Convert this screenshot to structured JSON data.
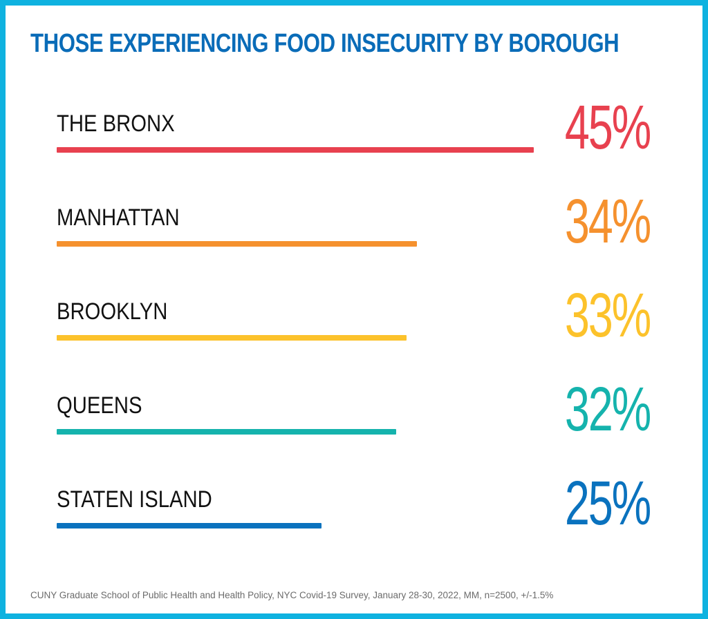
{
  "chart_data": {
    "type": "bar",
    "orientation": "horizontal",
    "title": "THOSE EXPERIENCING FOOD INSECURITY BY BOROUGH",
    "categories": [
      "THE BRONX",
      "MANHATTAN",
      "BROOKLYN",
      "QUEENS",
      "STATEN ISLAND"
    ],
    "values": [
      45,
      34,
      33,
      32,
      25
    ],
    "value_labels": [
      "45%",
      "34%",
      "33%",
      "32%",
      "25%"
    ],
    "unit": "%",
    "colors": [
      "#e8414f",
      "#f5912e",
      "#fcc22b",
      "#15b3ad",
      "#0a72be"
    ],
    "grid": false,
    "legend": "none",
    "source": "CUNY Graduate School of Public Health and Health Policy, NYC Covid-19 Survey, January 28-30, 2022, MM, n=2500, +/-1.5%"
  },
  "theme": {
    "border_color": "#0fb2e0",
    "title_color": "#0a6cb8",
    "label_color": "#111111",
    "footnote_color": "#6b6b6b"
  }
}
